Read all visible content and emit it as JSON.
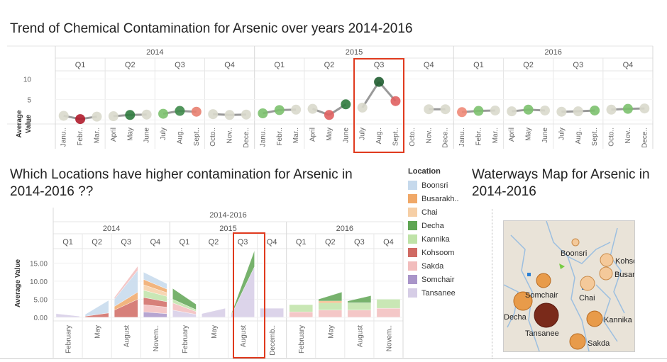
{
  "top": {
    "title": "Trend of Chemical Contamination for Arsenic over years 2014-2016",
    "y_axis_label": [
      "Average",
      "Value"
    ],
    "years": [
      "2014",
      "2015",
      "2016"
    ],
    "quarters": [
      "Q1",
      "Q2",
      "Q3",
      "Q4"
    ],
    "y_ticks": [
      "0",
      "5",
      "10"
    ],
    "month_labels": [
      "Janu..",
      "Febr..",
      "Mar..",
      "April",
      "May",
      "June",
      "July",
      "Aug..",
      "Sept..",
      "Octo..",
      "Nov..",
      "Dece..",
      "Janu..",
      "Febr..",
      "Mar..",
      "April",
      "May",
      "June",
      "July",
      "Aug..",
      "Sept..",
      "Octo..",
      "Nov..",
      "Dece..",
      "Janu..",
      "Febr..",
      "Mar..",
      "April",
      "May",
      "June",
      "July",
      "Aug..",
      "Sept..",
      "Octo..",
      "Nov..",
      "Dece.."
    ]
  },
  "bottom": {
    "title": "Which Locations have higher contamination for Arsenic in 2014-2016 ??",
    "header_top": "2014-2016",
    "years": [
      "2014",
      "2015",
      "2016"
    ],
    "quarters": [
      "Q1",
      "Q2",
      "Q3",
      "Q4"
    ],
    "y_axis_label": "Average Value",
    "y_ticks": [
      "0.00",
      "5.00",
      "10.00",
      "15.00"
    ],
    "month_labels": [
      "February",
      "May",
      "August",
      "Novem..",
      "February",
      "May",
      "August",
      "Decemb..",
      "February",
      "May",
      "August",
      "Novem.."
    ]
  },
  "legend": {
    "title": "Location",
    "items": [
      {
        "label": "Boonsri",
        "color": "#c6d9ec"
      },
      {
        "label": "Busarakh..",
        "color": "#f0a868"
      },
      {
        "label": "Chai",
        "color": "#f6cfa6"
      },
      {
        "label": "Decha",
        "color": "#5fa553"
      },
      {
        "label": "Kannika",
        "color": "#bfe3a8"
      },
      {
        "label": "Kohsoom",
        "color": "#d06a63"
      },
      {
        "label": "Sakda",
        "color": "#f2bdbd"
      },
      {
        "label": "Somchair",
        "color": "#a995c9"
      },
      {
        "label": "Tansanee",
        "color": "#d6cde6"
      }
    ]
  },
  "map": {
    "title": "Waterways Map for Arsenic in 2014-2016",
    "labels": [
      "Boonsri",
      "Kohsoom",
      "Busarakhan",
      "Chai",
      "Somchair",
      "Decha",
      "Tansanee",
      "Kannika",
      "Sakda"
    ]
  },
  "chart_data": [
    {
      "type": "line",
      "title": "Trend of Chemical Contamination for Arsenic over years 2014-2016",
      "ylabel": "Average Value",
      "ylim": [
        -1,
        12
      ],
      "x": [
        "2014-01",
        "2014-02",
        "2014-03",
        "2014-04",
        "2014-05",
        "2014-06",
        "2014-07",
        "2014-08",
        "2014-09",
        "2014-10",
        "2014-11",
        "2014-12",
        "2015-01",
        "2015-02",
        "2015-03",
        "2015-04",
        "2015-05",
        "2015-06",
        "2015-07",
        "2015-08",
        "2015-09",
        "2015-10",
        "2015-11",
        "2015-12",
        "2016-01",
        "2016-02",
        "2016-03",
        "2016-04",
        "2016-05",
        "2016-06",
        "2016-07",
        "2016-08",
        "2016-09",
        "2016-10",
        "2016-11",
        "2016-12"
      ],
      "values": [
        1.0,
        0.2,
        0.8,
        0.9,
        1.2,
        1.3,
        1.5,
        2.2,
        2.0,
        1.4,
        1.2,
        1.3,
        1.6,
        2.4,
        2.5,
        2.7,
        1.2,
        3.8,
        3.0,
        9.3,
        4.6,
        null,
        2.6,
        2.6,
        1.9,
        2.2,
        2.3,
        2.1,
        2.5,
        2.3,
        2.0,
        2.1,
        2.3,
        2.5,
        2.7,
        2.8
      ],
      "colors": [
        "#d9d9cc",
        "#b01c2c",
        "#d9d9cc",
        "#d9d9cc",
        "#2f7a3e",
        "#d9d9cc",
        "#7cc16e",
        "#3e8a4a",
        "#e88070",
        "#d9d9cc",
        "#d9d9cc",
        "#d9d9cc",
        "#7cc16e",
        "#7cc16e",
        "#d9d9cc",
        "#d9d9cc",
        "#e06060",
        "#2f7a3e",
        "#d9d9cc",
        "#1f5d30",
        "#e06060",
        "#ffffff",
        "#d9d9cc",
        "#d9d9cc",
        "#f08a78",
        "#7cc16e",
        "#d9d9cc",
        "#d9d9cc",
        "#7cc16e",
        "#d9d9cc",
        "#d9d9cc",
        "#d9d9cc",
        "#7cc16e",
        "#d9d9cc",
        "#7cc16e",
        "#d9d9cc"
      ],
      "highlight": "2015 Q3"
    },
    {
      "type": "area",
      "title": "Which Locations have higher contamination for Arsenic in 2014-2016 ??",
      "ylabel": "Average Value",
      "ylim": [
        -1,
        19
      ],
      "highlight": "2015 Q3",
      "quarters": [
        {
          "period": "2014 Q1",
          "series": {
            "Tansanee": [
              1.0,
              0.3
            ]
          }
        },
        {
          "period": "2014 Q2",
          "series": {
            "Kohsoom": [
              0.3,
              1.2
            ],
            "Boonsri": [
              0.5,
              3.5
            ]
          }
        },
        {
          "period": "2014 Q3",
          "series": {
            "Kohsoom": [
              2.0,
              5.0
            ],
            "Busarakh..": [
              1.0,
              2.0
            ],
            "Boonsri": [
              2.0,
              6.0
            ],
            "Sakda": [
              0.5,
              1.2
            ]
          }
        },
        {
          "period": "2014 Q4",
          "series": {
            "Somchair": [
              1.5,
              1.0
            ],
            "Sakda": [
              2.0,
              1.8
            ],
            "Kohsoom": [
              2.0,
              1.5
            ],
            "Kannika": [
              2.0,
              1.5
            ],
            "Chai": [
              1.5,
              1.0
            ],
            "Busarakh..": [
              1.5,
              1.0
            ],
            "Boonsri": [
              2.0,
              1.5
            ]
          }
        },
        {
          "period": "2015 Q1",
          "series": {
            "Tansanee": [
              2.0,
              0.8
            ],
            "Sakda": [
              2.0,
              0.8
            ],
            "Kannika": [
              1.0,
              0.5
            ],
            "Decha": [
              3.0,
              1.5
            ]
          }
        },
        {
          "period": "2015 Q2",
          "series": {
            "Tansanee": [
              1.0,
              2.5
            ]
          }
        },
        {
          "period": "2015 Q3",
          "series": {
            "Tansanee": [
              0.5,
              14.0
            ],
            "Decha": [
              0.2,
              4.5
            ]
          }
        },
        {
          "period": "2015 Q4",
          "series": {
            "Tansanee": [
              2.5,
              2.5
            ]
          }
        },
        {
          "period": "2016 Q1",
          "series": {
            "Sakda": [
              1.5,
              1.5
            ],
            "Kannika": [
              2.0,
              2.0
            ]
          }
        },
        {
          "period": "2016 Q2",
          "series": {
            "Sakda": [
              2.0,
              2.0
            ],
            "Kannika": [
              2.0,
              2.0
            ],
            "Busarakh..": [
              0.5,
              0.5
            ],
            "Decha": [
              0.5,
              2.5
            ]
          }
        },
        {
          "period": "2016 Q3",
          "series": {
            "Sakda": [
              2.0,
              2.0
            ],
            "Kannika": [
              2.0,
              2.0
            ],
            "Decha": [
              0.5,
              2.0
            ]
          }
        },
        {
          "period": "2016 Q4",
          "series": {
            "Sakda": [
              2.5,
              2.5
            ],
            "Kannika": [
              2.5,
              2.5
            ]
          }
        }
      ]
    }
  ]
}
